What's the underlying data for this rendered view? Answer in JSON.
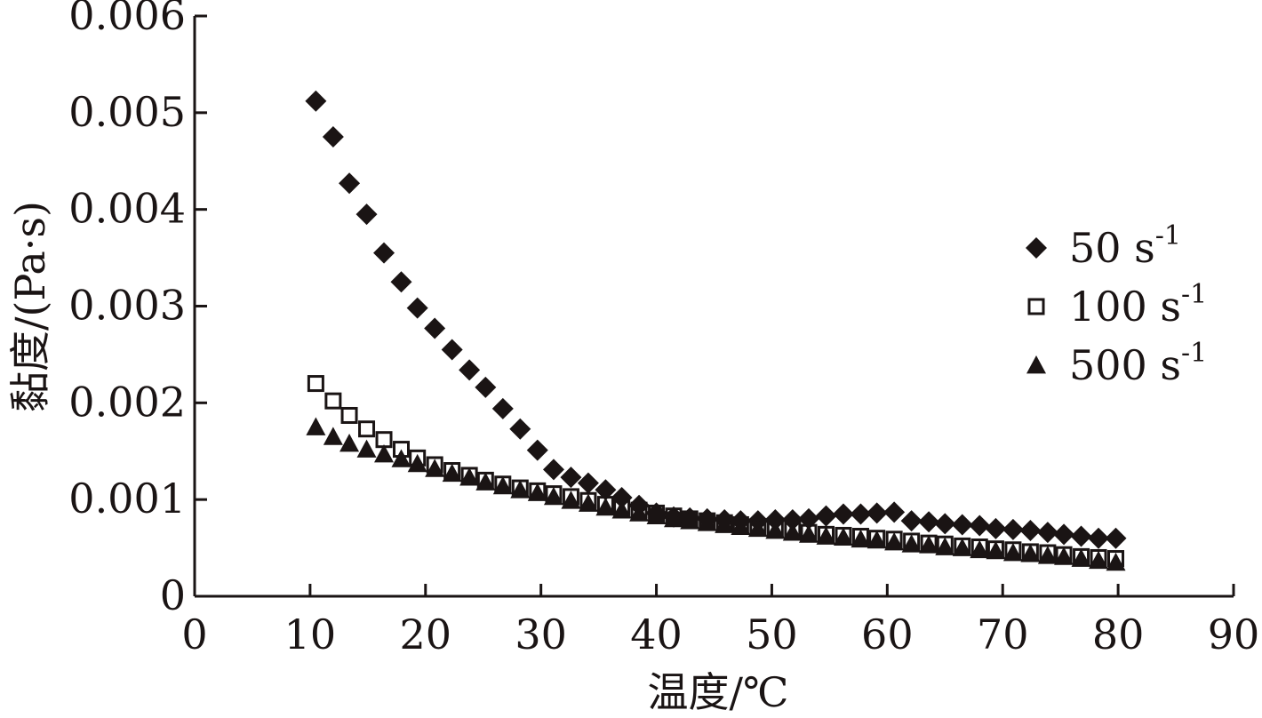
{
  "chart_data": {
    "type": "scatter",
    "title": "",
    "xlabel": "温度/℃",
    "ylabel": "黏度/(Pa·s)",
    "xlim": [
      0,
      90
    ],
    "ylim": [
      0,
      0.006
    ],
    "x_ticks": [
      0,
      10,
      20,
      30,
      40,
      50,
      60,
      70,
      80,
      90
    ],
    "x_tick_labels": [
      "0",
      "10",
      "20",
      "30",
      "40",
      "50",
      "60",
      "70",
      "80",
      "90"
    ],
    "y_ticks": [
      0,
      0.001,
      0.002,
      0.003,
      0.004,
      0.005,
      0.006
    ],
    "y_tick_labels": [
      "0",
      "0.001",
      "0.002",
      "0.003",
      "0.004",
      "0.005",
      "0.006"
    ],
    "grid": false,
    "legend_position": "right",
    "color": "#1a1414",
    "series": [
      {
        "name": "50 s",
        "superscript": "-1",
        "marker": "diamond-filled",
        "x": [
          10.5,
          12.0,
          13.4,
          14.9,
          16.4,
          17.9,
          19.3,
          20.8,
          22.3,
          23.8,
          25.2,
          26.7,
          28.2,
          29.7,
          31.1,
          32.6,
          34.1,
          35.6,
          37.0,
          38.5,
          40.0,
          41.5,
          42.9,
          44.4,
          45.9,
          47.3,
          48.8,
          50.3,
          51.8,
          53.2,
          54.7,
          56.2,
          57.7,
          59.1,
          60.6,
          62.1,
          63.6,
          65.0,
          66.5,
          68.0,
          69.4,
          70.9,
          72.4,
          73.9,
          75.3,
          76.8,
          78.3,
          79.8
        ],
        "y": [
          0.00512,
          0.00475,
          0.00427,
          0.00395,
          0.00355,
          0.00325,
          0.00298,
          0.00277,
          0.00255,
          0.00234,
          0.00216,
          0.00194,
          0.00173,
          0.00151,
          0.00131,
          0.00123,
          0.00117,
          0.0011,
          0.00102,
          0.00094,
          0.00086,
          0.00082,
          0.00081,
          0.0008,
          0.00079,
          0.00078,
          0.00078,
          0.00079,
          0.00079,
          0.0008,
          0.00083,
          0.00085,
          0.00085,
          0.00086,
          0.00087,
          0.00078,
          0.00077,
          0.00075,
          0.00074,
          0.00073,
          0.0007,
          0.00069,
          0.00068,
          0.00066,
          0.00064,
          0.00062,
          0.0006,
          0.0006
        ]
      },
      {
        "name": "100 s",
        "superscript": "-1",
        "marker": "square-open",
        "x": [
          10.5,
          12.0,
          13.4,
          14.9,
          16.4,
          17.9,
          19.3,
          20.8,
          22.3,
          23.8,
          25.2,
          26.7,
          28.2,
          29.7,
          31.1,
          32.6,
          34.1,
          35.6,
          37.0,
          38.5,
          40.0,
          41.5,
          42.9,
          44.4,
          45.9,
          47.3,
          48.8,
          50.3,
          51.8,
          53.2,
          54.7,
          56.2,
          57.7,
          59.1,
          60.6,
          62.1,
          63.6,
          65.0,
          66.5,
          68.0,
          69.4,
          70.9,
          72.4,
          73.9,
          75.3,
          76.8,
          78.3,
          79.8
        ],
        "y": [
          0.0022,
          0.00202,
          0.00187,
          0.00173,
          0.00162,
          0.00152,
          0.00143,
          0.00136,
          0.0013,
          0.00125,
          0.0012,
          0.00116,
          0.00112,
          0.00109,
          0.00106,
          0.00103,
          0.00099,
          0.00095,
          0.00092,
          0.00089,
          0.00086,
          0.00083,
          0.0008,
          0.00078,
          0.00076,
          0.00074,
          0.00072,
          0.0007,
          0.00068,
          0.00066,
          0.00064,
          0.00063,
          0.00062,
          0.0006,
          0.00059,
          0.00057,
          0.00055,
          0.00054,
          0.00052,
          0.00051,
          0.00049,
          0.00048,
          0.00046,
          0.00045,
          0.00043,
          0.00041,
          0.0004,
          0.00039
        ]
      },
      {
        "name": "500 s",
        "superscript": "-1",
        "marker": "triangle-filled",
        "x": [
          10.5,
          12.0,
          13.4,
          14.9,
          16.4,
          17.9,
          19.3,
          20.8,
          22.3,
          23.8,
          25.2,
          26.7,
          28.2,
          29.7,
          31.1,
          32.6,
          34.1,
          35.6,
          37.0,
          38.5,
          40.0,
          41.5,
          42.9,
          44.4,
          45.9,
          47.3,
          48.8,
          50.3,
          51.8,
          53.2,
          54.7,
          56.2,
          57.7,
          59.1,
          60.6,
          62.1,
          63.6,
          65.0,
          66.5,
          68.0,
          69.4,
          70.9,
          72.4,
          73.9,
          75.3,
          76.8,
          78.3,
          79.8
        ],
        "y": [
          0.00175,
          0.00165,
          0.00158,
          0.00152,
          0.00147,
          0.00142,
          0.00137,
          0.00132,
          0.00127,
          0.00123,
          0.00118,
          0.00114,
          0.0011,
          0.00107,
          0.00103,
          0.00099,
          0.00096,
          0.00092,
          0.00089,
          0.00086,
          0.00083,
          0.0008,
          0.00078,
          0.00076,
          0.00074,
          0.00072,
          0.0007,
          0.00068,
          0.00066,
          0.00064,
          0.00062,
          0.00061,
          0.00059,
          0.00058,
          0.00056,
          0.00054,
          0.00053,
          0.00051,
          0.0005,
          0.00048,
          0.00047,
          0.00045,
          0.00044,
          0.00042,
          0.00041,
          0.00039,
          0.00037,
          0.00035
        ]
      }
    ]
  }
}
